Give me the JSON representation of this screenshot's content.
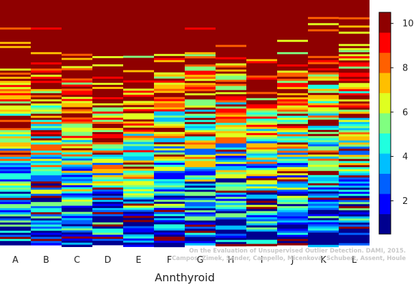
{
  "chart_data": {
    "type": "heatmap",
    "title": "",
    "xlabel": "Annthyroid",
    "ylabel": "",
    "categories": [
      "A",
      "B",
      "C",
      "D",
      "E",
      "F",
      "G",
      "H",
      "I",
      "J",
      "K",
      "L"
    ],
    "colormap": "jet",
    "colorbar": {
      "range": [
        0.5,
        10.5
      ],
      "levels": 10,
      "ticks": [
        2,
        4,
        6,
        8,
        10
      ],
      "tick_labels": [
        "2",
        "4",
        "6",
        "8",
        "10"
      ],
      "colors": [
        "#00008f",
        "#0000ff",
        "#0060ff",
        "#00bfff",
        "#20ffdf",
        "#80ff80",
        "#dfff20",
        "#ffbf00",
        "#ff6000",
        "#ff0000",
        "#8f0000"
      ]
    },
    "dark_red_start_fraction": [
      0.28,
      0.28,
      0.32,
      0.38,
      0.37,
      0.22,
      0.23,
      0.2,
      0.3,
      0.28,
      0.22,
      0.23
    ]
  },
  "caption": {
    "line1": "On the Evaluation of Unsupervised Outlier Detection. DAMI, 2015.",
    "line2": "Campos, Zimek, Sander, Campello, Micenková, Schubert, Assent, Houle"
  }
}
